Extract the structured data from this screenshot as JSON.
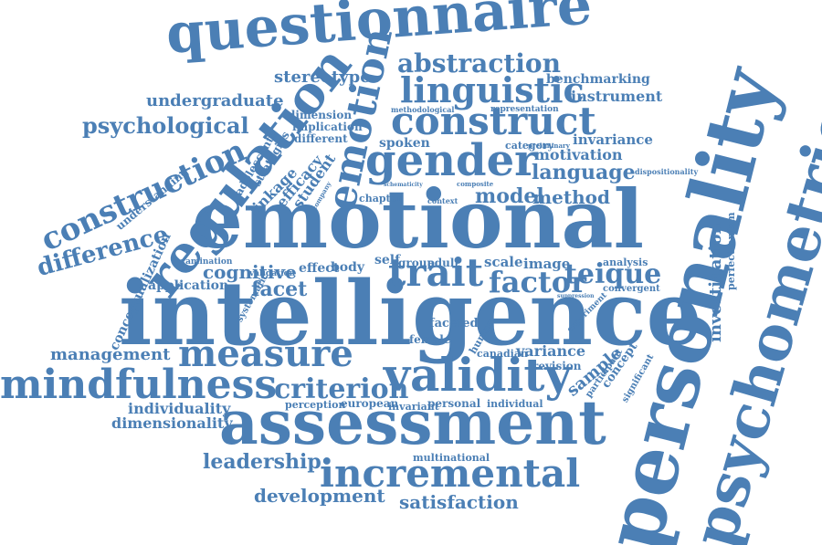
{
  "color": "#4b7fb5",
  "words": [
    "questionnaire",
    "personality",
    "psychometric",
    "emotional",
    "intelligence",
    "assessment",
    "regulation",
    "emotion",
    "construct",
    "linguistic",
    "abstraction",
    "gender",
    "construction",
    "mindfulness",
    "measure",
    "validity",
    "incremental",
    "trait",
    "factor",
    "teique",
    "criterion",
    "difference",
    "stereotype",
    "undergraduate",
    "psychological",
    "benchmarking",
    "instrument",
    "model",
    "method",
    "language",
    "motivation",
    "invariance",
    "cognitive",
    "facet",
    "management",
    "leadership",
    "development",
    "satisfaction",
    "sample",
    "concept",
    "variance",
    "investigation",
    "perfectionism",
    "dimensionality",
    "individuality",
    "spoken",
    "category",
    "scale",
    "image",
    "application",
    "conceptualization",
    "examination",
    "validation",
    "effect",
    "body",
    "self",
    "group",
    "adult",
    "analysis",
    "convergent",
    "canadian",
    "revision",
    "human",
    "faceted",
    "female",
    "personal",
    "individual",
    "european",
    "invariant",
    "perception",
    "multinational",
    "understanding",
    "student",
    "efficacy",
    "linkage",
    "adolescents",
    "strategies",
    "different",
    "implication",
    "dimension",
    "representation",
    "preliminary",
    "dispositionality",
    "methodological",
    "chapter",
    "context",
    "composite",
    "schematicity",
    "suppression",
    "experiment",
    "significant",
    "participant",
    "systematic",
    "company"
  ]
}
